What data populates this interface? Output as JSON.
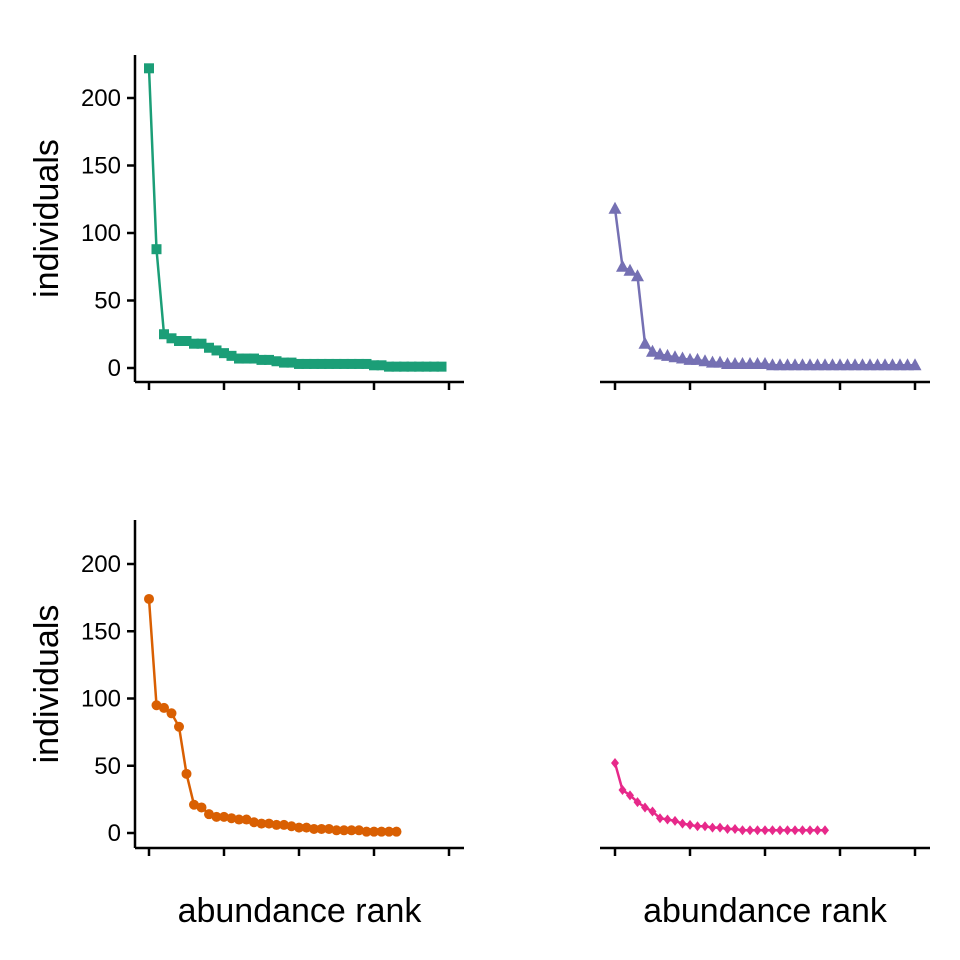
{
  "chart_data": [
    {
      "type": "line",
      "ylabel": "individuals",
      "xlabel": "",
      "ylim": [
        0,
        220
      ],
      "yticks": [
        0,
        50,
        100,
        150,
        200
      ],
      "xlim": [
        1,
        41
      ],
      "xticks": [
        1,
        11,
        21,
        31,
        41
      ],
      "color": "#1B9E77",
      "marker": "square",
      "show_y_axis": true,
      "series": [
        {
          "values": [
            222,
            88,
            25,
            22,
            20,
            20,
            18,
            18,
            15,
            13,
            11,
            9,
            7,
            7,
            7,
            6,
            6,
            5,
            4,
            4,
            3,
            3,
            3,
            3,
            3,
            3,
            3,
            3,
            3,
            3,
            2,
            2,
            1,
            1,
            1,
            1,
            1,
            1,
            1,
            1
          ]
        }
      ]
    },
    {
      "type": "line",
      "ylabel": "",
      "xlabel": "",
      "ylim": [
        0,
        220
      ],
      "yticks": [
        0,
        50,
        100,
        150,
        200
      ],
      "xlim": [
        1,
        41
      ],
      "xticks": [
        1,
        11,
        21,
        31,
        41
      ],
      "color": "#7570B3",
      "marker": "triangle",
      "show_y_axis": false,
      "series": [
        {
          "values": [
            118,
            75,
            72,
            68,
            18,
            12,
            10,
            9,
            8,
            7,
            6,
            6,
            5,
            4,
            4,
            3,
            3,
            3,
            3,
            3,
            3,
            2,
            2,
            2,
            2,
            2,
            2,
            2,
            2,
            2,
            2,
            2,
            2,
            2,
            2,
            2,
            2,
            2,
            2,
            2,
            2
          ]
        }
      ]
    },
    {
      "type": "line",
      "ylabel": "individuals",
      "xlabel": "abundance rank",
      "ylim": [
        0,
        220
      ],
      "yticks": [
        0,
        50,
        100,
        150,
        200
      ],
      "xlim": [
        1,
        41
      ],
      "xticks": [
        1,
        11,
        21,
        31,
        41
      ],
      "color": "#D95F02",
      "marker": "circle",
      "show_y_axis": true,
      "series": [
        {
          "values": [
            174,
            95,
            93,
            89,
            79,
            44,
            21,
            19,
            14,
            12,
            12,
            11,
            10,
            10,
            8,
            7,
            7,
            6,
            6,
            5,
            4,
            4,
            3,
            3,
            3,
            2,
            2,
            2,
            2,
            1,
            1,
            1,
            1,
            1
          ]
        }
      ]
    },
    {
      "type": "line",
      "ylabel": "",
      "xlabel": "abundance rank",
      "ylim": [
        0,
        220
      ],
      "yticks": [
        0,
        50,
        100,
        150,
        200
      ],
      "xlim": [
        1,
        41
      ],
      "xticks": [
        1,
        11,
        21,
        31,
        41
      ],
      "color": "#E7298A",
      "marker": "diamond",
      "show_y_axis": false,
      "series": [
        {
          "values": [
            52,
            32,
            28,
            23,
            19,
            16,
            11,
            10,
            9,
            7,
            6,
            5,
            5,
            4,
            4,
            3,
            3,
            2,
            2,
            2,
            2,
            2,
            2,
            2,
            2,
            2,
            2,
            2,
            2
          ]
        }
      ]
    }
  ]
}
